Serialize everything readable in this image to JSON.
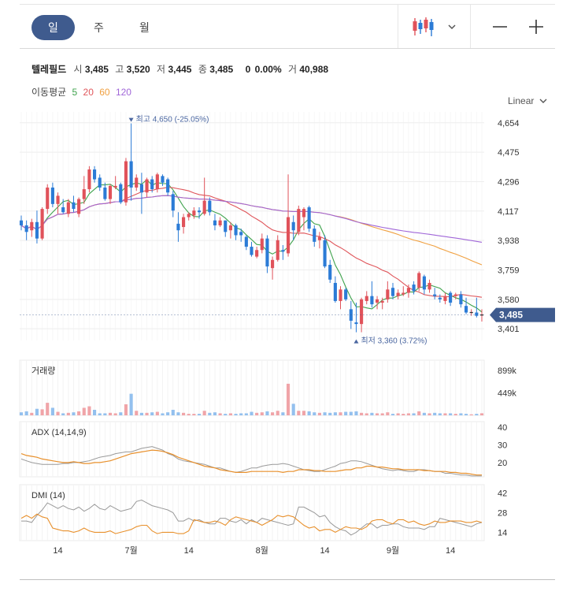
{
  "tabs": [
    {
      "label": "일",
      "active": true
    },
    {
      "label": "주",
      "active": false
    },
    {
      "label": "월",
      "active": false
    }
  ],
  "toolbar": {
    "candle_icon": "candlestick-chart-icon",
    "dropdown_icon": "chevron-down-icon",
    "zoom_out_icon": "minus-icon",
    "zoom_in_icon": "plus-icon"
  },
  "quote": {
    "name": "텔레필드",
    "open_label": "시",
    "open": "3,485",
    "high_label": "고",
    "high": "3,520",
    "low_label": "저",
    "low": "3,445",
    "close_label": "종",
    "close": "3,485",
    "change": "0",
    "change_pct": "0.00%",
    "volume_label": "거",
    "volume": "40,988"
  },
  "ma_legend": {
    "label": "이동평균",
    "items": [
      {
        "period": "5",
        "color": "#3fa34d"
      },
      {
        "period": "20",
        "color": "#e0565b"
      },
      {
        "period": "60",
        "color": "#f0a040"
      },
      {
        "period": "120",
        "color": "#a066d8"
      }
    ]
  },
  "scale_mode": "Linear",
  "colors": {
    "up": "#e0525a",
    "down": "#2b7bd6",
    "accent": "#3f5b8e",
    "adx": "#e8902c",
    "plus": "#e8902c",
    "minus": "#999999"
  },
  "chart_data": {
    "type": "candlestick",
    "price_axis": {
      "min": 3330,
      "max": 4720,
      "ticks": [
        "4,654",
        "4,475",
        "4,296",
        "4,117",
        "3,938",
        "3,759",
        "3,580",
        "3,401"
      ]
    },
    "current_price_label": "3,485",
    "high_annotation": "최고 4,650 (-25.05%)",
    "low_annotation": "최저 3,360 (3.72%)",
    "x_labels": [
      {
        "i": 7,
        "label": "14"
      },
      {
        "i": 21,
        "label": "7월"
      },
      {
        "i": 32,
        "label": "14"
      },
      {
        "i": 46,
        "label": "8월"
      },
      {
        "i": 58,
        "label": "14"
      },
      {
        "i": 71,
        "label": "9월"
      },
      {
        "i": 82,
        "label": "14"
      }
    ],
    "candles": [
      [
        4060,
        4090,
        4000,
        4030,
        60
      ],
      [
        4030,
        4060,
        3940,
        3990,
        80
      ],
      [
        4000,
        4070,
        3960,
        4050,
        50
      ],
      [
        4050,
        4120,
        3920,
        3950,
        130
      ],
      [
        3950,
        4140,
        3940,
        4130,
        120
      ],
      [
        4130,
        4280,
        4100,
        4260,
        250
      ],
      [
        4260,
        4290,
        4140,
        4160,
        150
      ],
      [
        4160,
        4230,
        4100,
        4210,
        70
      ],
      [
        4140,
        4190,
        4100,
        4110,
        40
      ],
      [
        4100,
        4190,
        4080,
        4170,
        50
      ],
      [
        4170,
        4210,
        4110,
        4130,
        60
      ],
      [
        4100,
        4200,
        4080,
        4190,
        80
      ],
      [
        4190,
        4330,
        4160,
        4250,
        150
      ],
      [
        4250,
        4390,
        4230,
        4370,
        180
      ],
      [
        4370,
        4390,
        4290,
        4310,
        110
      ],
      [
        4320,
        4340,
        4240,
        4260,
        40
      ],
      [
        4260,
        4290,
        4180,
        4190,
        40
      ],
      [
        4190,
        4280,
        4160,
        4270,
        50
      ],
      [
        4260,
        4330,
        4250,
        4270,
        40
      ],
      [
        4280,
        4290,
        4160,
        4170,
        60
      ],
      [
        4170,
        4440,
        4150,
        4420,
        220
      ],
      [
        4420,
        4650,
        4180,
        4260,
        430
      ],
      [
        4260,
        4340,
        4240,
        4320,
        90
      ],
      [
        4280,
        4350,
        4100,
        4230,
        50
      ],
      [
        4230,
        4320,
        4200,
        4310,
        50
      ],
      [
        4310,
        4330,
        4230,
        4250,
        60
      ],
      [
        4250,
        4350,
        4230,
        4340,
        70
      ],
      [
        4330,
        4340,
        4270,
        4290,
        40
      ],
      [
        4310,
        4320,
        4210,
        4230,
        60
      ],
      [
        4220,
        4240,
        4080,
        4120,
        110
      ],
      [
        4040,
        4110,
        3930,
        4000,
        60
      ],
      [
        4020,
        4100,
        3980,
        4080,
        50
      ],
      [
        4080,
        4110,
        4060,
        4100,
        30
      ],
      [
        4090,
        4140,
        4070,
        4120,
        30
      ],
      [
        4120,
        4140,
        4070,
        4110,
        30
      ],
      [
        4100,
        4320,
        4090,
        4180,
        90
      ],
      [
        4180,
        4200,
        4090,
        4110,
        50
      ],
      [
        4060,
        4100,
        4000,
        4030,
        60
      ],
      [
        4030,
        4080,
        4020,
        4060,
        40
      ],
      [
        4060,
        4060,
        3960,
        3990,
        30
      ],
      [
        4000,
        4050,
        3950,
        4030,
        40
      ],
      [
        4030,
        4040,
        3940,
        3970,
        30
      ],
      [
        3990,
        4010,
        3930,
        3970,
        40
      ],
      [
        3960,
        3970,
        3880,
        3900,
        40
      ],
      [
        3900,
        3930,
        3840,
        3850,
        70
      ],
      [
        3840,
        3900,
        3830,
        3880,
        50
      ],
      [
        3880,
        3980,
        3860,
        3950,
        60
      ],
      [
        3950,
        3970,
        3740,
        3780,
        80
      ],
      [
        3770,
        3840,
        3700,
        3820,
        60
      ],
      [
        3820,
        3970,
        3810,
        3940,
        90
      ],
      [
        3880,
        3910,
        3820,
        3870,
        60
      ],
      [
        3860,
        4340,
        3840,
        4080,
        630
      ],
      [
        4050,
        4090,
        3940,
        4000,
        230
      ],
      [
        3990,
        4150,
        3970,
        4130,
        90
      ],
      [
        4080,
        4140,
        4000,
        4130,
        90
      ],
      [
        4140,
        4150,
        3990,
        4010,
        80
      ],
      [
        4010,
        4030,
        3900,
        3930,
        60
      ],
      [
        3940,
        3990,
        3890,
        3960,
        50
      ],
      [
        3940,
        3970,
        3770,
        3780,
        60
      ],
      [
        3790,
        3820,
        3680,
        3700,
        50
      ],
      [
        3680,
        3720,
        3560,
        3570,
        60
      ],
      [
        3570,
        3660,
        3520,
        3640,
        60
      ],
      [
        3640,
        3650,
        3570,
        3580,
        70
      ],
      [
        3520,
        3570,
        3400,
        3450,
        70
      ],
      [
        3440,
        3560,
        3380,
        3430,
        80
      ],
      [
        3430,
        3590,
        3380,
        3580,
        50
      ],
      [
        3570,
        3630,
        3550,
        3600,
        40
      ],
      [
        3600,
        3690,
        3530,
        3550,
        50
      ],
      [
        3560,
        3600,
        3520,
        3580,
        40
      ],
      [
        3560,
        3590,
        3520,
        3570,
        40
      ],
      [
        3580,
        3690,
        3560,
        3640,
        60
      ],
      [
        3650,
        3680,
        3580,
        3600,
        30
      ],
      [
        3600,
        3640,
        3580,
        3620,
        40
      ],
      [
        3610,
        3660,
        3600,
        3620,
        30
      ],
      [
        3620,
        3670,
        3590,
        3650,
        40
      ],
      [
        3670,
        3690,
        3610,
        3630,
        40
      ],
      [
        3650,
        3750,
        3630,
        3740,
        80
      ],
      [
        3720,
        3730,
        3610,
        3640,
        50
      ],
      [
        3640,
        3700,
        3620,
        3680,
        40
      ],
      [
        3610,
        3650,
        3580,
        3600,
        50
      ],
      [
        3590,
        3610,
        3560,
        3580,
        40
      ],
      [
        3570,
        3620,
        3550,
        3600,
        40
      ],
      [
        3620,
        3630,
        3540,
        3560,
        40
      ],
      [
        3600,
        3620,
        3580,
        3610,
        30
      ],
      [
        3610,
        3630,
        3530,
        3550,
        40
      ],
      [
        3540,
        3590,
        3490,
        3500,
        30
      ],
      [
        3500,
        3520,
        3480,
        3500,
        20
      ],
      [
        3500,
        3590,
        3470,
        3480,
        30
      ],
      [
        3485,
        3520,
        3445,
        3485,
        41
      ]
    ],
    "volume": {
      "title": "거래량",
      "ticks": [
        "899k",
        "449k"
      ],
      "tick_values": [
        899,
        449
      ],
      "max": 1100,
      "unit": "k"
    },
    "adx": {
      "title": "ADX (14,14,9)",
      "ticks": [
        "40",
        "30",
        "20"
      ],
      "tick_values": [
        40,
        30,
        20
      ],
      "min": 12,
      "max": 43,
      "adx_values": [
        25,
        24,
        23.5,
        23,
        22,
        21.5,
        21,
        20.5,
        20,
        20,
        20.5,
        20,
        19.5,
        19.5,
        20,
        20,
        20.5,
        21,
        22,
        23,
        24,
        25,
        25.5,
        26,
        26.5,
        27,
        26.8,
        26.3,
        25.5,
        24.5,
        23,
        22,
        21,
        20,
        19,
        18,
        17.5,
        17,
        16,
        15.5,
        15,
        14.5,
        14.5,
        14.5,
        15,
        15,
        15,
        15,
        15,
        15,
        14.5,
        15,
        15,
        16,
        16,
        16,
        15.5,
        15.5,
        15,
        15,
        15,
        15.5,
        16,
        16,
        17,
        17,
        18,
        18,
        17.5,
        17.5,
        17,
        16.5,
        16.5,
        16,
        16,
        16,
        16,
        15.5,
        15.5,
        15,
        15,
        15,
        14.5,
        14.5,
        14,
        14,
        13.5,
        13,
        13
      ],
      "signal_values": [
        22,
        21,
        20,
        19.5,
        19,
        19,
        19,
        19,
        19.5,
        19.5,
        20,
        20,
        20.5,
        21,
        22,
        23,
        23.5,
        24,
        25,
        25.5,
        26,
        26,
        27,
        28,
        28.5,
        29,
        28,
        27,
        25,
        24,
        22,
        21,
        20.5,
        20,
        19.5,
        19,
        18,
        17,
        17,
        16,
        15,
        14.5,
        15,
        16,
        17,
        17,
        18,
        18.5,
        19,
        19,
        19.5,
        19,
        18,
        17,
        16,
        15.5,
        15,
        15,
        16,
        17,
        18,
        19.5,
        20,
        21,
        21,
        20.5,
        19.5,
        18.5,
        17.5,
        16.5,
        16,
        15.5,
        16,
        15.5,
        15,
        15,
        16,
        16,
        15.5,
        15,
        15,
        14,
        14,
        13.5,
        13,
        13,
        12.5,
        12.5,
        12.5
      ]
    },
    "dmi": {
      "title": "DMI (14)",
      "ticks": [
        "42",
        "28",
        "14"
      ],
      "tick_values": [
        42,
        28,
        14
      ],
      "min": 8,
      "max": 48,
      "plus_di": [
        24,
        26,
        24,
        27,
        25,
        24,
        17,
        16,
        15,
        15,
        14,
        15,
        17,
        15,
        14,
        14,
        14,
        15,
        13,
        14,
        15,
        16,
        18,
        19,
        19,
        15,
        13,
        14,
        14,
        14,
        13,
        13,
        15,
        23,
        22,
        21,
        21,
        22,
        21,
        19,
        23,
        25,
        24,
        23,
        22,
        21,
        19,
        21,
        23,
        26,
        25,
        26,
        25,
        22,
        19,
        17,
        18,
        15,
        16,
        16,
        14,
        16,
        18,
        17,
        17,
        16,
        18,
        22,
        23,
        23,
        21,
        20,
        23,
        23,
        21,
        22,
        20,
        19,
        20,
        22,
        21,
        21,
        22,
        22,
        22,
        21,
        21,
        22,
        21
      ],
      "minus_di": [
        22,
        22,
        21,
        26,
        30,
        35,
        33,
        31,
        33,
        31,
        30,
        32,
        29,
        31,
        34,
        31,
        30,
        33,
        31,
        29,
        30,
        31,
        36,
        37,
        35,
        33,
        32,
        31,
        30,
        28,
        22,
        22,
        24,
        22,
        23,
        21,
        20,
        20,
        24,
        24,
        22,
        21,
        23,
        20,
        23,
        21,
        24,
        23,
        22,
        21,
        20,
        19,
        20,
        32,
        32,
        30,
        28,
        25,
        26,
        21,
        18,
        16,
        15,
        12,
        14,
        17,
        20,
        20,
        17,
        19,
        19,
        20,
        20,
        18,
        17,
        17,
        17,
        16,
        18,
        18,
        24,
        23,
        22,
        21,
        20,
        19,
        18,
        20,
        21
      ]
    }
  }
}
